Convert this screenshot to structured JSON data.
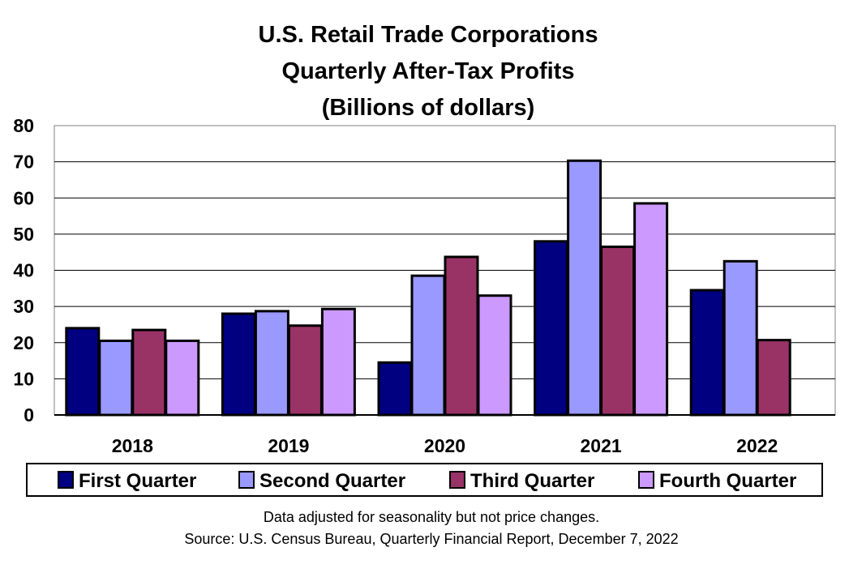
{
  "chart_data": {
    "type": "bar",
    "title_lines": [
      "U.S. Retail Trade Corporations",
      "Quarterly After-Tax Profits",
      "(Billions of dollars)"
    ],
    "categories": [
      "2018",
      "2019",
      "2020",
      "2021",
      "2022"
    ],
    "series": [
      {
        "name": "First Quarter",
        "color": "#000080",
        "values": [
          24,
          28,
          14.5,
          48,
          34.5
        ]
      },
      {
        "name": "Second Quarter",
        "color": "#9999FF",
        "values": [
          20.5,
          28.7,
          38.5,
          70.3,
          42.5
        ]
      },
      {
        "name": "Third Quarter",
        "color": "#993366",
        "values": [
          23.5,
          24.7,
          43.7,
          46.5,
          20.7
        ]
      },
      {
        "name": "Fourth Quarter",
        "color": "#CC99FF",
        "values": [
          20.5,
          29.3,
          33,
          58.5,
          null
        ]
      }
    ],
    "yticks": [
      "0",
      "10",
      "20",
      "30",
      "40",
      "50",
      "60",
      "70",
      "80"
    ],
    "ylim": [
      0,
      80
    ],
    "grid": true,
    "legend_position": "bottom",
    "notes": [
      "Data adjusted for seasonality but not price changes.",
      "Source: U.S. Census Bureau, Quarterly Financial Report, December 7, 2022"
    ]
  }
}
